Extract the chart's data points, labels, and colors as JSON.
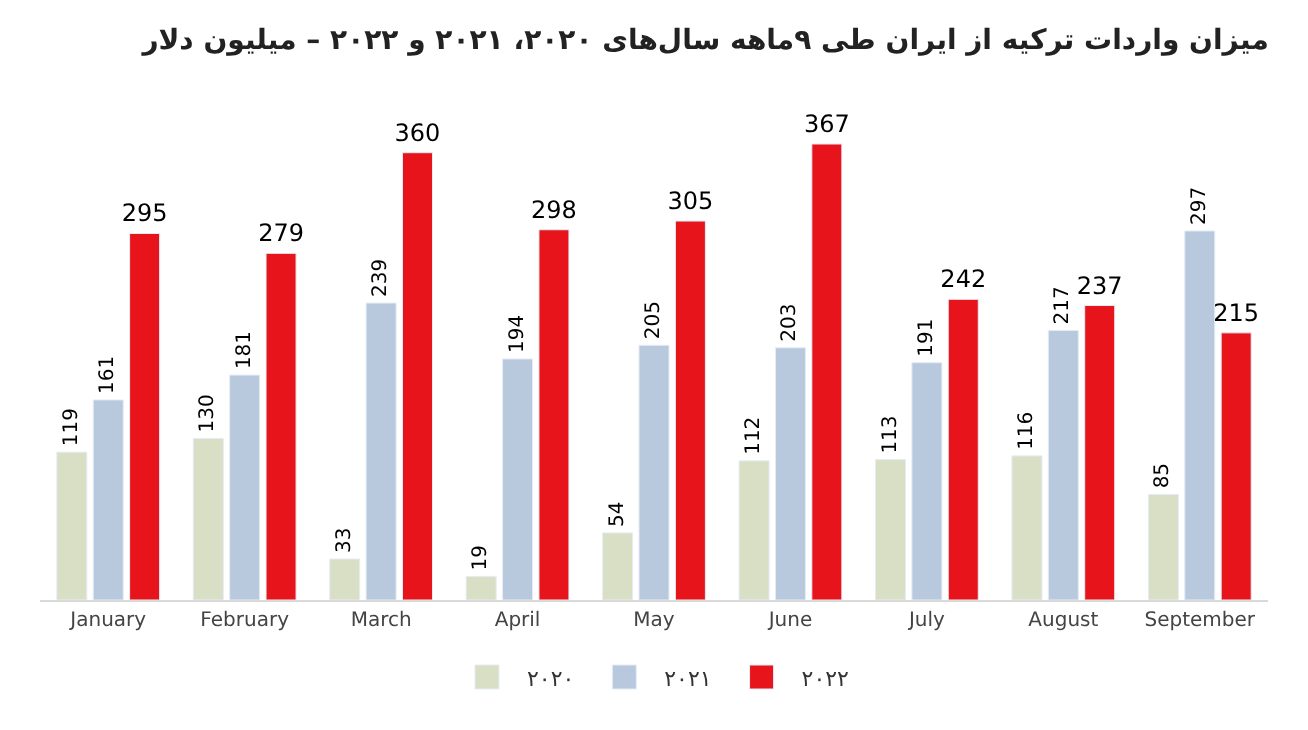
{
  "chart_data": {
    "type": "bar",
    "title": "میزان واردات ترکیه از ایران طی ۹ماهه سال‌های ۲۰۲۰، ۲۰۲۱ و ۲۰۲۲ – میلیون دلار",
    "categories": [
      "January",
      "February",
      "March",
      "April",
      "May",
      "June",
      "July",
      "August",
      "September"
    ],
    "series": [
      {
        "name": "۲۰۲۰",
        "color": "#d9dfc5",
        "values": [
          119,
          130,
          33,
          19,
          54,
          112,
          113,
          116,
          85
        ]
      },
      {
        "name": "۲۰۲۱",
        "color": "#b8c9de",
        "values": [
          161,
          181,
          239,
          194,
          205,
          203,
          191,
          217,
          297
        ]
      },
      {
        "name": "۲۰۲۲",
        "color": "#e8141c",
        "values": [
          295,
          279,
          360,
          298,
          305,
          367,
          242,
          237,
          215
        ]
      }
    ],
    "data_labels": true,
    "legend": "bottom"
  }
}
